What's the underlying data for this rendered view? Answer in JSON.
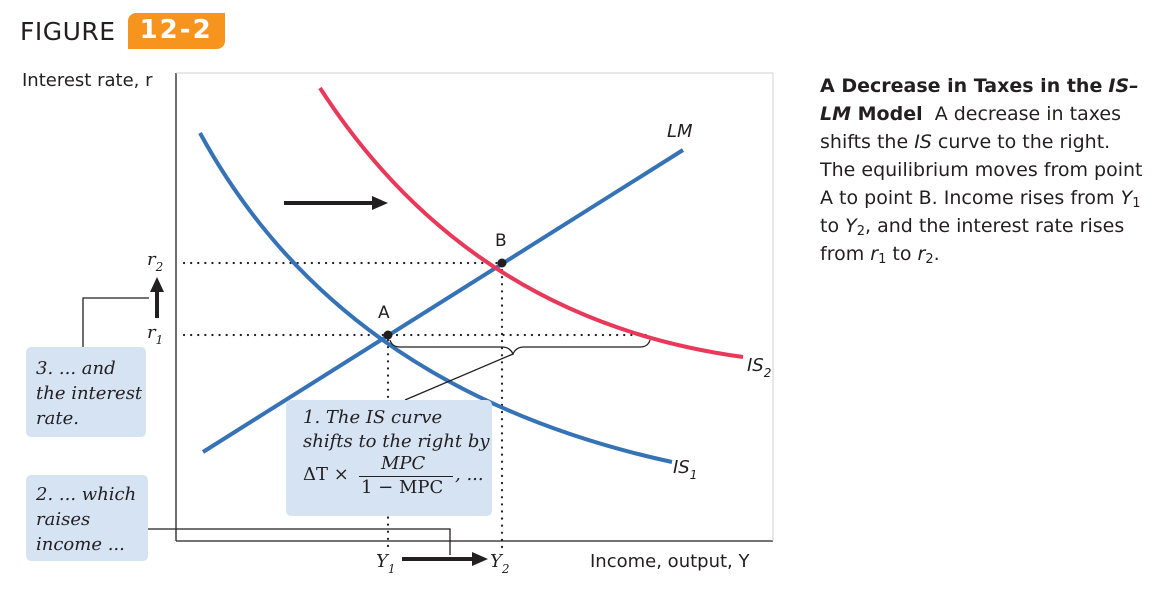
{
  "figure": {
    "word": "FIGURE",
    "number": "12-2"
  },
  "axes": {
    "y_label": "Interest rate, r",
    "x_label": "Income, output, Y"
  },
  "curves": [
    {
      "name": "LM",
      "color": "#3572b6"
    },
    {
      "name": "IS",
      "sub": "1",
      "color": "#3572b6"
    },
    {
      "name": "IS",
      "sub": "2",
      "color": "#e8395a"
    }
  ],
  "points": [
    {
      "label": "A"
    },
    {
      "label": "B"
    }
  ],
  "axis_marks": {
    "r1": {
      "base": "r",
      "sub": "1"
    },
    "r2": {
      "base": "r",
      "sub": "2"
    },
    "y1": {
      "base": "Y",
      "sub": "1"
    },
    "y2": {
      "base": "Y",
      "sub": "2"
    }
  },
  "notes": {
    "note1": {
      "line1": "1. The IS curve",
      "line2": "shifts to the right by",
      "delta": "ΔT ×",
      "numerator": "MPC",
      "denominator": "1 − MPC",
      "tail": ", ..."
    },
    "note2": {
      "line1": "2. ... which",
      "line2": "raises",
      "line3": "income ..."
    },
    "note3": {
      "line1": "3. ... and",
      "line2": "the interest",
      "line3": "rate."
    }
  },
  "caption": {
    "title": "A Decrease in Taxes in the",
    "title2_italic": "IS–LM",
    "title2_rest": " Model",
    "t1": "A decrease in taxes shifts the ",
    "t1_i": "IS",
    "t2": " curve to the right. The equilibrium moves from point A to point B. Income rises from ",
    "y": "Y",
    "s1": "1",
    "to": " to ",
    "s2": "2",
    "t3": ", and the interest rate rises from ",
    "r": "r",
    "end": "."
  },
  "colors": {
    "accent": "#f7941d",
    "blue": "#3572b6",
    "red": "#e8395a",
    "note_bg": "#d6e3f3"
  }
}
